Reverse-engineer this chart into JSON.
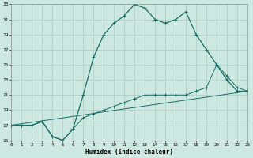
{
  "xlabel": "Humidex (Indice chaleur)",
  "bg_color": "#cce8e0",
  "grid_color": "#aaccc4",
  "line_color": "#1a6e64",
  "x_min": 0,
  "x_max": 23,
  "y_min": 15,
  "y_max": 33,
  "y_ticks": [
    15,
    17,
    19,
    21,
    23,
    25,
    27,
    29,
    31,
    33
  ],
  "x_ticks": [
    0,
    1,
    2,
    3,
    4,
    5,
    6,
    7,
    8,
    9,
    10,
    11,
    12,
    13,
    14,
    15,
    16,
    17,
    18,
    19,
    20,
    21,
    22,
    23
  ],
  "series1_x": [
    0,
    1,
    2,
    3,
    4,
    5,
    6,
    7,
    8,
    9,
    10,
    11,
    12,
    13,
    14,
    15,
    16,
    17,
    18,
    19,
    20,
    21,
    22,
    23
  ],
  "series1_y": [
    17,
    17,
    17,
    17.5,
    15.5,
    15,
    16.5,
    21,
    26,
    29,
    30.5,
    31.5,
    33,
    32.5,
    31,
    30.5,
    31,
    32,
    29,
    27,
    25,
    23,
    21.5,
    21.5
  ],
  "series2_x": [
    0,
    1,
    2,
    3,
    4,
    5,
    6,
    7,
    8,
    9,
    10,
    11,
    12,
    13,
    14,
    15,
    16,
    17,
    18,
    19,
    20,
    21,
    22,
    23
  ],
  "series2_y": [
    17,
    17,
    17,
    17.5,
    15.5,
    15,
    16.5,
    18,
    18.5,
    19,
    19.5,
    20,
    20.5,
    21,
    21,
    21,
    21,
    21,
    21.5,
    22,
    25,
    23.5,
    22,
    21.5
  ],
  "series3_x": [
    0,
    23
  ],
  "series3_y": [
    17,
    21.5
  ]
}
